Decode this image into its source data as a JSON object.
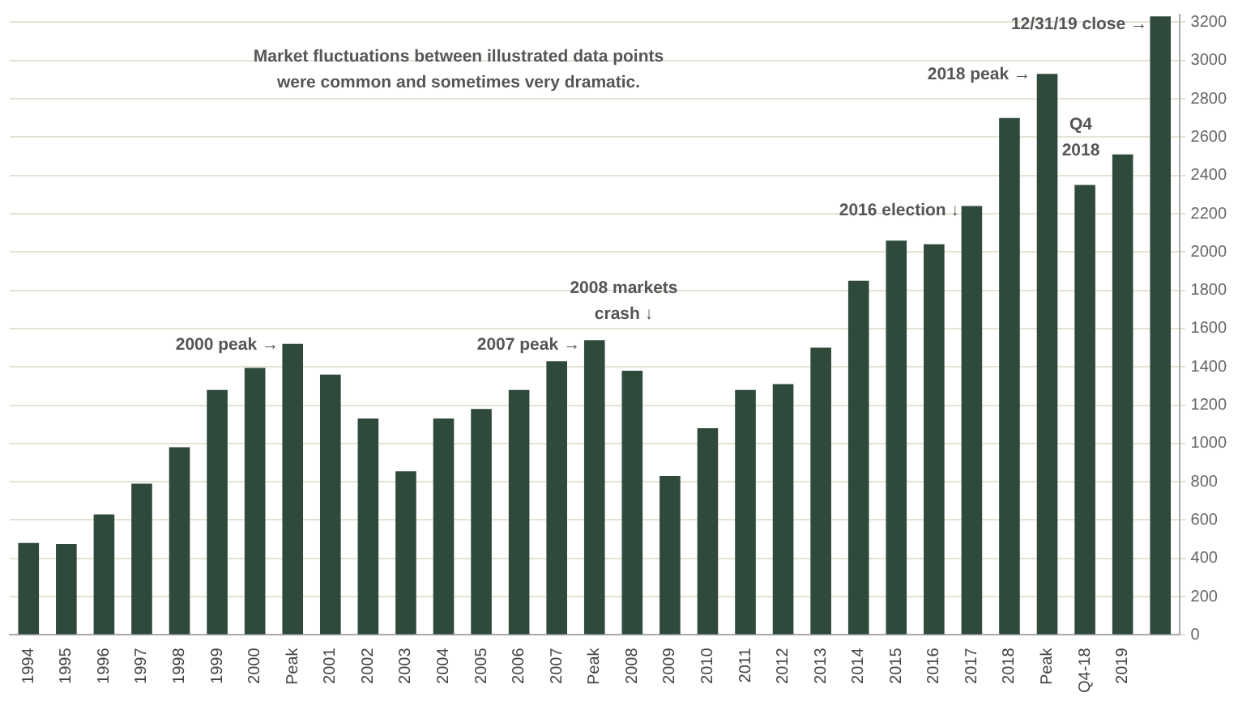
{
  "chart_data": {
    "type": "bar",
    "categories": [
      "1994",
      "1995",
      "1996",
      "1997",
      "1998",
      "1999",
      "2000",
      "Peak",
      "2001",
      "2002",
      "2003",
      "2004",
      "2005",
      "2006",
      "2007",
      "Peak",
      "2008",
      "2009",
      "2010",
      "2011",
      "2012",
      "2013",
      "2014",
      "2015",
      "2016",
      "2017",
      "2018",
      "Peak",
      "Q4-18",
      "2019",
      null
    ],
    "values": [
      480,
      475,
      630,
      790,
      980,
      1280,
      1395,
      1520,
      1360,
      1130,
      855,
      1130,
      1180,
      1280,
      1430,
      1540,
      1380,
      830,
      1080,
      1280,
      1310,
      1500,
      1850,
      2060,
      2040,
      2240,
      2700,
      2930,
      2350,
      2510,
      3230
    ],
    "color": "#2f4a3b",
    "ylim": [
      0,
      3240
    ],
    "yticks": [
      0,
      200,
      400,
      600,
      800,
      1000,
      1200,
      1400,
      1600,
      1800,
      2000,
      2200,
      2400,
      2600,
      2800,
      3000,
      3200
    ],
    "grid": "y",
    "legend": false,
    "annotations": [
      "Market fluctuations between illustrated data points\nwere common and sometimes very dramatic.",
      "2000 peak →",
      "2007 peak →",
      "2008 markets\ncrash ↓",
      "2016 election ↓",
      "2018 peak →",
      "Q4\n2018",
      "12/31/19 close →"
    ]
  }
}
